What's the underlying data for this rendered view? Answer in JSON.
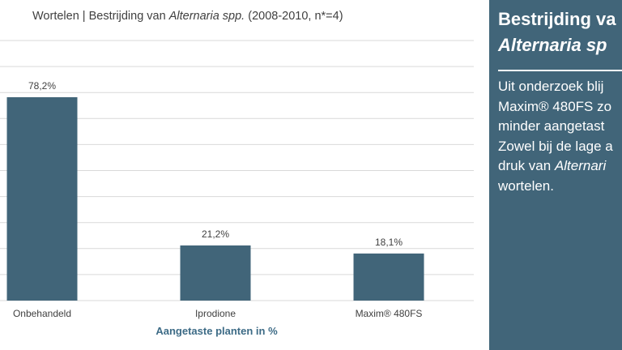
{
  "chart_title": {
    "prefix": "Wortelen | Bestrijding van ",
    "italic": "Alternaria spp.",
    "suffix": " (2008-2010, n*=4)"
  },
  "chart_data": {
    "type": "bar",
    "categories": [
      "Onbehandeld",
      "Iprodione",
      "Maxim® 480FS"
    ],
    "values": [
      78.2,
      21.2,
      18.1
    ],
    "data_labels": [
      "78,2%",
      "21,2%",
      "18,1%"
    ],
    "xlabel": "Aangetaste planten in %",
    "ylabel": "",
    "ylim": [
      0,
      100
    ],
    "grid": true,
    "legend": "none",
    "bar_color": "#416579"
  },
  "side_panel": {
    "title_line1": "Bestrijding va",
    "title_line2": "Alternaria sp",
    "body_line1": "Uit onderzoek blij",
    "body_line2": "Maxim® 480FS zo",
    "body_line3": "minder aangetast",
    "body_line4": "Zowel bij de lage a",
    "body_line5_prefix": "druk van ",
    "body_line5_italic": "Alternari",
    "body_line6": "wortelen.",
    "background_color": "#416579"
  }
}
